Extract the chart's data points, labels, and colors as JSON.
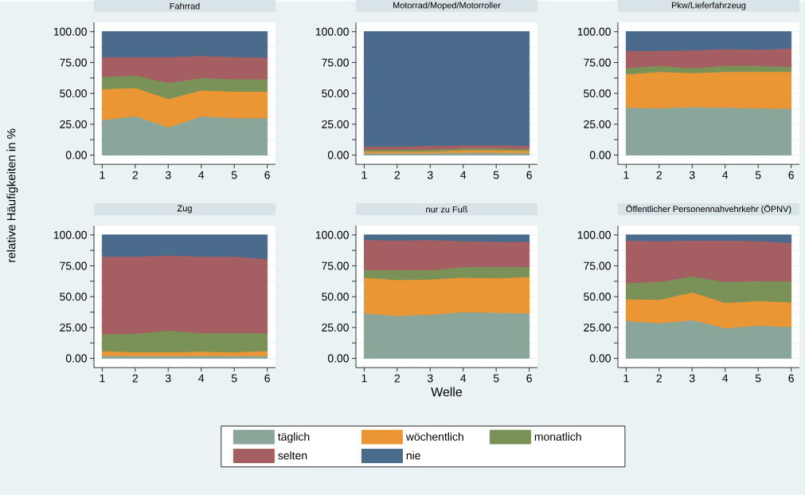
{
  "chart_data": [
    {
      "type": "area",
      "stacked": true,
      "title": "Fahrrad",
      "ylabel": "relative Häufigkeiten in %",
      "x": [
        1,
        2,
        3,
        4,
        5,
        6
      ],
      "xlim": [
        0.75,
        6.25
      ],
      "xticks": [
        1,
        2,
        3,
        4,
        5,
        6
      ],
      "ylim": [
        -7.5,
        107.5
      ],
      "yticks": [
        {
          "value": 0,
          "label": "0.00"
        },
        {
          "value": 12.5,
          "label": null
        },
        {
          "value": 25,
          "label": "25.00"
        },
        {
          "value": 37.5,
          "label": null
        },
        {
          "value": 50,
          "label": "50.00"
        },
        {
          "value": 62.5,
          "label": null
        },
        {
          "value": 75,
          "label": "75.00"
        },
        {
          "value": 87.5,
          "label": null
        },
        {
          "value": 100,
          "label": "100.00"
        }
      ],
      "grid": "y",
      "series": [
        {
          "color": "#8aa59a",
          "values": [
            28,
            31,
            22,
            31,
            29.5,
            29.5
          ]
        },
        {
          "color": "#ea9634",
          "values": [
            25,
            23,
            23,
            21,
            21.5,
            21.5
          ]
        },
        {
          "color": "#7a9157",
          "values": [
            10,
            10,
            13,
            10,
            10,
            10
          ]
        },
        {
          "color": "#a55e62",
          "values": [
            16,
            15,
            21,
            18,
            18,
            17.5
          ]
        },
        {
          "color": "#4a6b8c",
          "values": [
            21,
            21,
            21,
            20,
            21,
            21.5
          ]
        }
      ]
    },
    {
      "type": "area",
      "stacked": true,
      "title": "Motorrad/Moped/Motorroller",
      "x": [
        1,
        2,
        3,
        4,
        5,
        6
      ],
      "xlim": [
        0.75,
        6.25
      ],
      "xticks": [
        1,
        2,
        3,
        4,
        5,
        6
      ],
      "ylim": [
        -7.5,
        107.5
      ],
      "yticks": [
        {
          "value": 0,
          "label": "0.00"
        },
        {
          "value": 12.5,
          "label": null
        },
        {
          "value": 25,
          "label": "25.00"
        },
        {
          "value": 37.5,
          "label": null
        },
        {
          "value": 50,
          "label": "50.00"
        },
        {
          "value": 62.5,
          "label": null
        },
        {
          "value": 75,
          "label": "75.00"
        },
        {
          "value": 87.5,
          "label": null
        },
        {
          "value": 100,
          "label": "100.00"
        }
      ],
      "grid": "y",
      "series": [
        {
          "color": "#8aa59a",
          "values": [
            1,
            1,
            1,
            1.5,
            1.5,
            1
          ]
        },
        {
          "color": "#ea9634",
          "values": [
            1.5,
            1.5,
            1.5,
            2,
            2,
            2
          ]
        },
        {
          "color": "#7a9157",
          "values": [
            1.5,
            1.5,
            1.5,
            1.5,
            1.5,
            1.5
          ]
        },
        {
          "color": "#a55e62",
          "values": [
            2.5,
            2.5,
            3,
            2.5,
            2.5,
            2.5
          ]
        },
        {
          "color": "#4a6b8c",
          "values": [
            93.5,
            93.5,
            93,
            92.5,
            92.5,
            93
          ]
        }
      ]
    },
    {
      "type": "area",
      "stacked": true,
      "title": "Pkw/Lieferfahrzeug",
      "x": [
        1,
        2,
        3,
        4,
        5,
        6
      ],
      "xlim": [
        0.75,
        6.25
      ],
      "xticks": [
        1,
        2,
        3,
        4,
        5,
        6
      ],
      "ylim": [
        -7.5,
        107.5
      ],
      "yticks": [
        {
          "value": 0,
          "label": "0.00"
        },
        {
          "value": 12.5,
          "label": null
        },
        {
          "value": 25,
          "label": "25.00"
        },
        {
          "value": 37.5,
          "label": null
        },
        {
          "value": 50,
          "label": "50.00"
        },
        {
          "value": 62.5,
          "label": null
        },
        {
          "value": 75,
          "label": "75.00"
        },
        {
          "value": 87.5,
          "label": null
        },
        {
          "value": 100,
          "label": "100.00"
        }
      ],
      "grid": "y",
      "series": [
        {
          "color": "#8aa59a",
          "values": [
            38,
            37.5,
            38.5,
            38,
            37.5,
            37
          ]
        },
        {
          "color": "#ea9634",
          "values": [
            27,
            29.5,
            27.5,
            29,
            29.5,
            30
          ]
        },
        {
          "color": "#7a9157",
          "values": [
            5,
            5,
            4,
            5,
            5,
            4
          ]
        },
        {
          "color": "#a55e62",
          "values": [
            14,
            12,
            14.5,
            13.5,
            13,
            15
          ]
        },
        {
          "color": "#4a6b8c",
          "values": [
            16,
            16,
            15.5,
            14.5,
            15,
            14
          ]
        }
      ]
    },
    {
      "type": "area",
      "stacked": true,
      "title": "Zug",
      "x": [
        1,
        2,
        3,
        4,
        5,
        6
      ],
      "xlim": [
        0.75,
        6.25
      ],
      "xticks": [
        1,
        2,
        3,
        4,
        5,
        6
      ],
      "ylim": [
        -7.5,
        107.5
      ],
      "yticks": [
        {
          "value": 0,
          "label": "0.00"
        },
        {
          "value": 12.5,
          "label": null
        },
        {
          "value": 25,
          "label": "25.00"
        },
        {
          "value": 37.5,
          "label": null
        },
        {
          "value": 50,
          "label": "50.00"
        },
        {
          "value": 62.5,
          "label": null
        },
        {
          "value": 75,
          "label": "75.00"
        },
        {
          "value": 87.5,
          "label": null
        },
        {
          "value": 100,
          "label": "100.00"
        }
      ],
      "grid": "y",
      "series": [
        {
          "color": "#8aa59a",
          "values": [
            1.5,
            1.5,
            1.5,
            1.5,
            1.5,
            1.5
          ]
        },
        {
          "color": "#ea9634",
          "values": [
            4,
            3,
            3,
            3.5,
            3,
            4
          ]
        },
        {
          "color": "#7a9157",
          "values": [
            13.5,
            15,
            17.5,
            15,
            15.5,
            14.5
          ]
        },
        {
          "color": "#a55e62",
          "values": [
            63,
            62.5,
            61,
            62,
            62,
            60
          ]
        },
        {
          "color": "#4a6b8c",
          "values": [
            18,
            18,
            17,
            18,
            18,
            20
          ]
        }
      ]
    },
    {
      "type": "area",
      "stacked": true,
      "title": "nur zu Fuß",
      "xlabel": "Welle",
      "legend": "bottom",
      "x": [
        1,
        2,
        3,
        4,
        5,
        6
      ],
      "xlim": [
        0.75,
        6.25
      ],
      "xticks": [
        1,
        2,
        3,
        4,
        5,
        6
      ],
      "ylim": [
        -7.5,
        107.5
      ],
      "yticks": [
        {
          "value": 0,
          "label": "0.00"
        },
        {
          "value": 12.5,
          "label": null
        },
        {
          "value": 25,
          "label": "25.00"
        },
        {
          "value": 37.5,
          "label": null
        },
        {
          "value": 50,
          "label": "50.00"
        },
        {
          "value": 62.5,
          "label": null
        },
        {
          "value": 75,
          "label": "75.00"
        },
        {
          "value": 87.5,
          "label": null
        },
        {
          "value": 100,
          "label": "100.00"
        }
      ],
      "grid": "y",
      "series": [
        {
          "name": "täglich",
          "color": "#8aa59a",
          "values": [
            36,
            34,
            35,
            37,
            36.5,
            36
          ]
        },
        {
          "name": "wöchentlich",
          "color": "#ea9634",
          "values": [
            29,
            29,
            28.5,
            28,
            28,
            29.5
          ]
        },
        {
          "name": "monatlich",
          "color": "#7a9157",
          "values": [
            6,
            8,
            7.5,
            8.5,
            9,
            8
          ]
        },
        {
          "name": "selten",
          "color": "#a55e62",
          "values": [
            24.5,
            24,
            24.5,
            21,
            20.5,
            20.5
          ]
        },
        {
          "name": "nie",
          "color": "#4a6b8c",
          "values": [
            4.5,
            5,
            4.5,
            5.5,
            6,
            6
          ]
        }
      ]
    },
    {
      "type": "area",
      "stacked": true,
      "title": "Öffentlicher Personennahvehrkehr (ÖPNV)",
      "x": [
        1,
        2,
        3,
        4,
        5,
        6
      ],
      "xlim": [
        0.75,
        6.25
      ],
      "xticks": [
        1,
        2,
        3,
        4,
        5,
        6
      ],
      "ylim": [
        -7.5,
        107.5
      ],
      "yticks": [
        {
          "value": 0,
          "label": "0.00"
        },
        {
          "value": 12.5,
          "label": null
        },
        {
          "value": 25,
          "label": "25.00"
        },
        {
          "value": 37.5,
          "label": null
        },
        {
          "value": 50,
          "label": "50.00"
        },
        {
          "value": 62.5,
          "label": null
        },
        {
          "value": 75,
          "label": "75.00"
        },
        {
          "value": 87.5,
          "label": null
        },
        {
          "value": 100,
          "label": "100.00"
        }
      ],
      "grid": "y",
      "series": [
        {
          "color": "#8aa59a",
          "values": [
            30,
            28,
            30.5,
            24,
            26,
            25
          ]
        },
        {
          "color": "#ea9634",
          "values": [
            17.5,
            19,
            22.5,
            20.5,
            20,
            20
          ]
        },
        {
          "color": "#7a9157",
          "values": [
            13,
            14.5,
            13,
            17,
            16,
            17
          ]
        },
        {
          "color": "#a55e62",
          "values": [
            34.5,
            33,
            29,
            33.5,
            32.5,
            31
          ]
        },
        {
          "color": "#4a6b8c",
          "values": [
            5,
            5.5,
            5,
            5,
            5.5,
            7
          ]
        }
      ]
    }
  ]
}
